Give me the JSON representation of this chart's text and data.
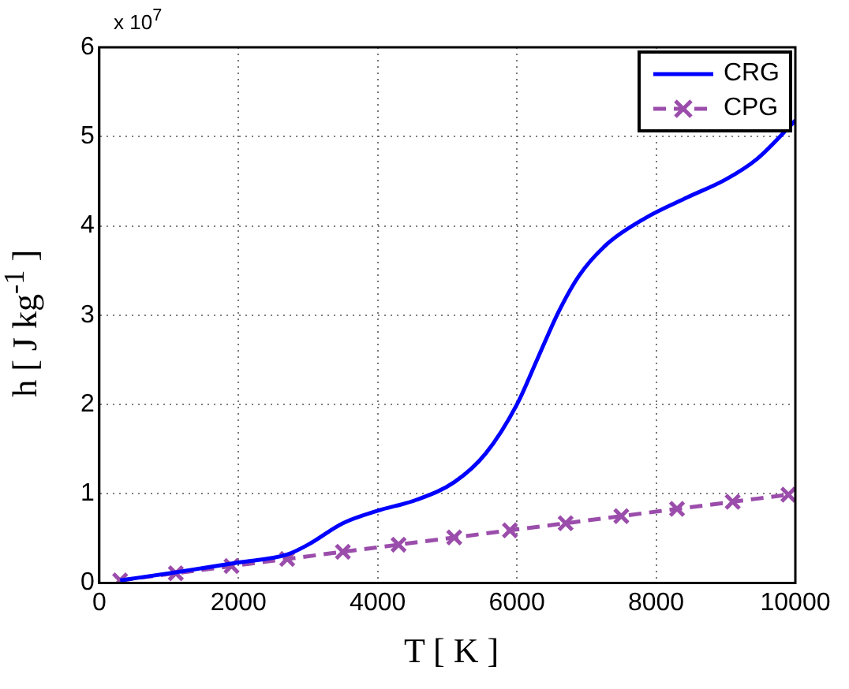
{
  "chart_data": {
    "type": "line",
    "xlabel": "T [ K ]",
    "ylabel": "h [ J kg$^{-1}$ ]",
    "annotations": [
      "x 10$^{7}$"
    ],
    "xlim": [
      0,
      10000
    ],
    "xticks": [
      0,
      2000,
      4000,
      6000,
      8000,
      10000
    ],
    "ylim": [
      0,
      6
    ],
    "yticks": [
      0,
      1,
      2,
      3,
      4,
      5,
      6
    ],
    "grid": true,
    "legend": "top right",
    "series": [
      {
        "name": "CRG",
        "color": "#0000ff",
        "marker": "none",
        "line_style": "solid",
        "x": [
          300,
          1100,
          2000,
          2700,
          3000,
          3500,
          4000,
          4550,
          5100,
          5550,
          6000,
          6300,
          6600,
          6900,
          7300,
          7850,
          8450,
          9000,
          9450,
          10000
        ],
        "values": [
          0.03,
          0.12,
          0.23,
          0.32,
          0.43,
          0.67,
          0.81,
          0.93,
          1.13,
          1.45,
          2.0,
          2.52,
          3.04,
          3.45,
          3.8,
          4.09,
          4.32,
          4.52,
          4.75,
          5.18
        ]
      },
      {
        "name": "CPG",
        "color": "#9b4dab",
        "marker": "cross",
        "line_style": "dashed",
        "x": [
          300,
          1100,
          1900,
          2700,
          3500,
          4300,
          5100,
          5900,
          6700,
          7500,
          8300,
          9100,
          9900
        ],
        "values": [
          0.03,
          0.11,
          0.19,
          0.27,
          0.35,
          0.43,
          0.51,
          0.59,
          0.67,
          0.75,
          0.83,
          0.91,
          0.99
        ]
      }
    ]
  }
}
